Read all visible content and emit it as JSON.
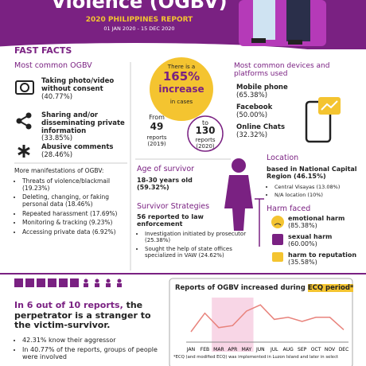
{
  "header": {
    "title": "Violence (OGBV)",
    "subtitle": "2020 PHILIPPINES REPORT",
    "dates": "01 JAN 2020 - 15 DEC 2020"
  },
  "fast_facts": {
    "heading": "FAST FACTS",
    "most_common": {
      "heading": "Most common OGBV",
      "items": [
        {
          "label": "Taking photo/video without consent",
          "value": "(40.77%)"
        },
        {
          "label": "Sharing and/or disseminating private information",
          "value": "(33.85%)"
        },
        {
          "label": "Abusive comments",
          "value": "(28.46%)"
        }
      ]
    },
    "more": {
      "heading": "More manifestations of OGBV:",
      "items": [
        "Threats of violence/blackmail (19.23%)",
        "Deleting, changing, or faking personal data (18.46%)",
        "Repeated harassment (17.69%)",
        "Monitoring & tracking (9.23%)",
        "Accessing private data (6.92%)"
      ]
    }
  },
  "increase": {
    "lead": "There is a",
    "percent": "165%",
    "word": "increase",
    "tail": "in cases",
    "from": "From",
    "from_count": "49",
    "from_label": "reports (2019)",
    "to": "to",
    "to_count": "130",
    "to_label": "reports (2020)"
  },
  "devices": {
    "heading": "Most common devices and platforms used",
    "items": [
      {
        "label": "Mobile phone",
        "value": "(65.38%)"
      },
      {
        "label": "Facebook",
        "value": "(50.00%)"
      },
      {
        "label": "Online Chats",
        "value": "(32.32%)"
      }
    ]
  },
  "age": {
    "heading": "Age of survivor",
    "text": "18-30 years old (59.32%)"
  },
  "strategies": {
    "heading": "Survivor Strategies",
    "lead": "56 reported to law enforcement",
    "items": [
      "Investigation initiated by prosecutor (25.38%)",
      "Sought the help of state offices specialized in VAW (24.62%)"
    ]
  },
  "location": {
    "heading": "Location",
    "lead": "based in National Capital Region (46.15%)",
    "items": [
      "Central Visayas (13.08%)",
      "N/A location (10%)"
    ]
  },
  "harm": {
    "heading": "Harm faced",
    "items": [
      {
        "label": "emotional harm",
        "value": "(85.38%)"
      },
      {
        "label": "sexual harm",
        "value": "(60.00%)"
      },
      {
        "label": "harm to reputation",
        "value": "(35.58%)"
      }
    ]
  },
  "perpetrator": {
    "highlight": "In 6 out of 10 reports,",
    "headline": "the perpetrator is a stranger to the victim-survivor.",
    "items": [
      "42.31% know their aggressor",
      "In 40.77% of the reports, groups of people were involved"
    ]
  },
  "chart_data": {
    "type": "line",
    "title": "Reports of OGBV increased during",
    "title_highlight": "ECQ period*",
    "categories": [
      "JAN",
      "FEB",
      "MAR",
      "APR",
      "MAY",
      "JUN",
      "JUL",
      "AUG",
      "SEP",
      "OCT",
      "NOV",
      "DEC"
    ],
    "values": [
      5,
      14,
      7,
      8,
      15,
      18,
      11,
      12,
      10,
      12,
      12,
      6
    ],
    "color": "#e8837c",
    "highlight_range": [
      2,
      4
    ],
    "ylim": [
      0,
      20
    ],
    "footnote": "*ECQ (and modified ECQ) was implemented in Luzon Island and later in select"
  }
}
